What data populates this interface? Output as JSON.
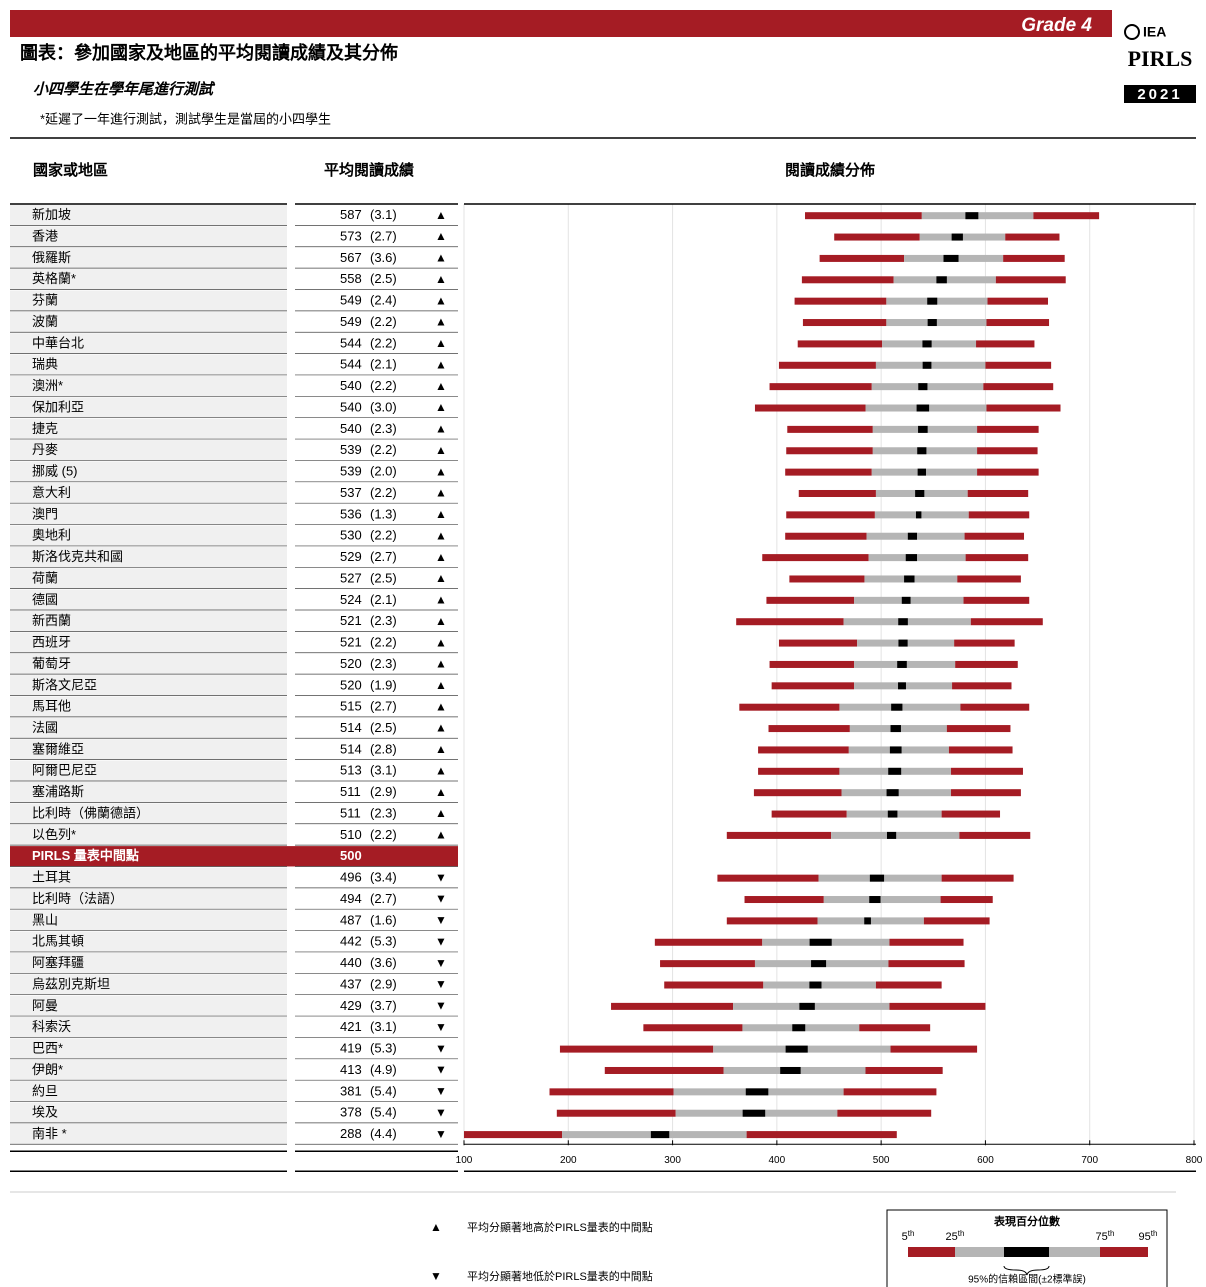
{
  "header": {
    "grade": "Grade 4",
    "logo_org": "IEA",
    "logo_name": "PIRLS",
    "logo_year": "2021"
  },
  "chart_data": {
    "type": "percentile",
    "title": "圖表：參加國家及地區的平均閱讀成績及其分佈",
    "subtitle": "小四學生在學年尾進行測試",
    "note": "*延遲了一年進行測試，測試學生是當屆的小四學生",
    "column_headers": [
      "國家或地區",
      "平均閱讀成績",
      "閱讀成績分佈"
    ],
    "categories": [
      "新加坡",
      "香港",
      "俄羅斯",
      "英格蘭*",
      "芬蘭",
      "波蘭",
      "中華台北",
      "瑞典",
      "澳洲*",
      "保加利亞",
      "捷克",
      "丹麥",
      "挪威 (5)",
      "意大利",
      "澳門",
      "奧地利",
      "斯洛伐克共和國",
      "荷蘭",
      "德國",
      "新西蘭",
      "西班牙",
      "葡萄牙",
      "斯洛文尼亞",
      "馬耳他",
      "法國",
      "塞爾維亞",
      "阿爾巴尼亞",
      "塞浦路斯",
      "比利時（佛蘭德語）",
      "以色列*",
      "PIRLS 量表中間點",
      "土耳其",
      "比利時（法語）",
      "黑山",
      "北馬其頓",
      "阿塞拜疆",
      "烏茲別克斯坦",
      "阿曼",
      "科索沃",
      "巴西*",
      "伊朗*",
      "約旦",
      "埃及",
      "南非 *"
    ],
    "values": [
      587,
      573,
      567,
      558,
      549,
      549,
      544,
      544,
      540,
      540,
      540,
      539,
      539,
      537,
      536,
      530,
      529,
      527,
      524,
      521,
      521,
      520,
      520,
      515,
      514,
      514,
      513,
      511,
      511,
      510,
      500,
      496,
      494,
      487,
      442,
      440,
      437,
      429,
      421,
      419,
      413,
      381,
      378,
      288
    ],
    "se": [
      3.1,
      2.7,
      3.6,
      2.5,
      2.4,
      2.2,
      2.2,
      2.1,
      2.2,
      3.0,
      2.3,
      2.2,
      2.0,
      2.2,
      1.3,
      2.2,
      2.7,
      2.5,
      2.1,
      2.3,
      2.2,
      2.3,
      1.9,
      2.7,
      2.5,
      2.8,
      3.1,
      2.9,
      2.3,
      2.2,
      null,
      3.4,
      2.7,
      1.6,
      5.3,
      3.6,
      2.9,
      3.7,
      3.1,
      5.3,
      4.9,
      5.4,
      5.4,
      4.4
    ],
    "se_labels": [
      "(3.1)",
      "(2.7)",
      "(3.6)",
      "(2.5)",
      "(2.4)",
      "(2.2)",
      "(2.2)",
      "(2.1)",
      "(2.2)",
      "(3.0)",
      "(2.3)",
      "(2.2)",
      "(2.0)",
      "(2.2)",
      "(1.3)",
      "(2.2)",
      "(2.7)",
      "(2.5)",
      "(2.1)",
      "(2.3)",
      "(2.2)",
      "(2.3)",
      "(1.9)",
      "(2.7)",
      "(2.5)",
      "(2.8)",
      "(3.1)",
      "(2.9)",
      "(2.3)",
      "(2.2)",
      null,
      "(3.4)",
      "(2.7)",
      "(1.6)",
      "(5.3)",
      "(3.6)",
      "(2.9)",
      "(3.7)",
      "(3.1)",
      "(5.3)",
      "(4.9)",
      "(5.4)",
      "(5.4)",
      "(4.4)"
    ],
    "significance": [
      "▲",
      "▲",
      "▲",
      "▲",
      "▲",
      "▲",
      "▲",
      "▲",
      "▲",
      "▲",
      "▲",
      "▲",
      "▲",
      "▲",
      "▲",
      "▲",
      "▲",
      "▲",
      "▲",
      "▲",
      "▲",
      "▲",
      "▲",
      "▲",
      "▲",
      "▲",
      "▲",
      "▲",
      "▲",
      "▲",
      null,
      "▼",
      "▼",
      "▼",
      "▼",
      "▼",
      "▼",
      "▼",
      "▼",
      "▼",
      "▼",
      "▼",
      "▼",
      "▼"
    ],
    "p5": [
      427,
      455,
      441,
      424,
      417,
      425,
      420,
      402,
      393,
      379,
      410,
      409,
      408,
      421,
      409,
      408,
      386,
      412,
      390,
      361,
      402,
      393,
      395,
      364,
      392,
      382,
      382,
      378,
      395,
      352,
      null,
      343,
      369,
      352,
      283,
      288,
      292,
      241,
      272,
      192,
      235,
      182,
      189,
      100
    ],
    "p25": [
      539,
      537,
      522,
      512,
      505,
      505,
      501,
      495,
      491,
      485,
      492,
      492,
      491,
      495,
      494,
      486,
      488,
      484,
      474,
      464,
      477,
      474,
      474,
      460,
      470,
      469,
      460,
      462,
      467,
      452,
      null,
      440,
      445,
      439,
      386,
      379,
      387,
      358,
      367,
      339,
      349,
      301,
      303,
      194
    ],
    "p75": [
      646,
      619,
      617,
      610,
      602,
      601,
      591,
      600,
      598,
      601,
      592,
      592,
      592,
      583,
      584,
      580,
      581,
      573,
      579,
      586,
      570,
      571,
      568,
      576,
      563,
      565,
      567,
      567,
      558,
      575,
      null,
      558,
      557,
      541,
      508,
      507,
      495,
      508,
      479,
      509,
      485,
      464,
      458,
      371
    ],
    "p95": [
      709,
      671,
      676,
      677,
      660,
      661,
      647,
      663,
      665,
      672,
      651,
      650,
      651,
      641,
      642,
      637,
      641,
      634,
      642,
      655,
      628,
      631,
      625,
      642,
      624,
      626,
      636,
      634,
      614,
      643,
      null,
      627,
      607,
      604,
      579,
      580,
      558,
      600,
      547,
      592,
      559,
      553,
      548,
      515
    ],
    "colors": {
      "tail": "#a51c24",
      "middle": "#b5b5b5",
      "ci": "#000000"
    },
    "xlim": [
      100,
      800
    ],
    "xticks": [
      100,
      200,
      300,
      400,
      500,
      600,
      700,
      800
    ],
    "grid": true,
    "legend": {
      "title": "表現百分位數",
      "percentiles": [
        [
          "5",
          "th"
        ],
        [
          "25",
          "th"
        ],
        [
          "75",
          "th"
        ],
        [
          "95",
          "th"
        ]
      ],
      "ci_label": "95%的信賴區間(±2標準誤)"
    },
    "significance_legend": [
      {
        "symbol": "▲",
        "text": "平均分顯著地高於PIRLS量表的中間點"
      },
      {
        "symbol": "▼",
        "text": "平均分顯著地低於PIRLS量表的中間點"
      }
    ]
  }
}
